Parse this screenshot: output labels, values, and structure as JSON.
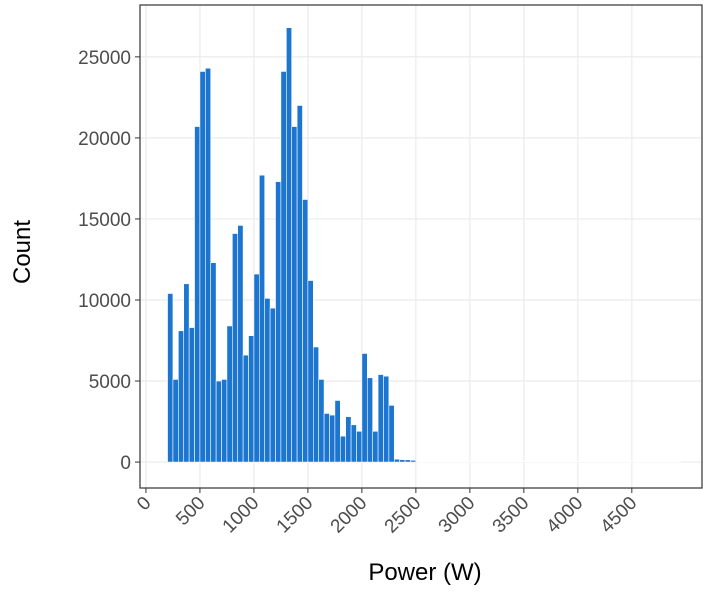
{
  "chart_data": {
    "type": "histogram",
    "x_label": "Power (W)",
    "y_label": "Count",
    "color": "#1c75cf",
    "edge_color": "#ffffff",
    "grid": true,
    "bins": [
      200,
      250,
      300,
      350,
      400,
      450,
      500,
      550,
      600,
      650,
      700,
      750,
      800,
      850,
      900,
      950,
      1000,
      1050,
      1100,
      1150,
      1200,
      1250,
      1300,
      1350,
      1400,
      1450,
      1500,
      1550,
      1600,
      1650,
      1700,
      1750,
      1800,
      1850,
      1900,
      1950,
      2000,
      2050,
      2100,
      2150,
      2200,
      2250,
      2300,
      2350,
      2400,
      2450,
      2500,
      2550,
      2600,
      2650,
      2700,
      2750,
      2800,
      2850,
      2900,
      2950,
      3000,
      3050,
      3100,
      3150,
      3200,
      3250,
      3300,
      3350,
      3400,
      3450,
      3500,
      3550,
      3600,
      3650,
      3700,
      3750,
      3800,
      3850,
      3900,
      3950,
      4000,
      4050,
      4100,
      4150,
      4200,
      4250,
      4300,
      4350,
      4400,
      4450,
      4500,
      4550,
      4600,
      4650,
      4700,
      4750,
      4800,
      4850,
      4900,
      4950
    ],
    "counts": [
      10400,
      5100,
      8100,
      11000,
      8300,
      20700,
      24100,
      24300,
      12300,
      5000,
      5100,
      8400,
      14100,
      14600,
      6600,
      7800,
      11600,
      17700,
      10100,
      9500,
      17300,
      24100,
      26800,
      20700,
      22000,
      16200,
      11200,
      7100,
      5100,
      3000,
      2900,
      3800,
      1600,
      2800,
      2300,
      1900,
      6700,
      5200,
      1900,
      5400,
      5300,
      3500,
      180,
      150,
      140,
      110,
      30,
      30,
      30,
      30,
      30,
      30,
      30,
      30,
      30,
      30,
      30,
      30,
      30,
      30,
      30,
      30,
      30,
      30,
      30,
      30,
      30,
      30,
      30,
      30,
      30,
      30,
      30,
      30,
      30,
      30,
      30,
      30,
      30,
      30,
      30,
      30,
      30,
      30,
      30,
      30,
      30,
      30,
      30,
      30,
      30,
      30,
      30,
      30,
      30
    ],
    "xlim": [
      -55,
      5150
    ],
    "xticks": [
      0,
      500,
      1000,
      1500,
      2000,
      2500,
      3000,
      3500,
      4000,
      4500
    ],
    "ylim": [
      -1600,
      28200
    ],
    "yticks": [
      0,
      5000,
      10000,
      15000,
      20000,
      25000
    ]
  }
}
